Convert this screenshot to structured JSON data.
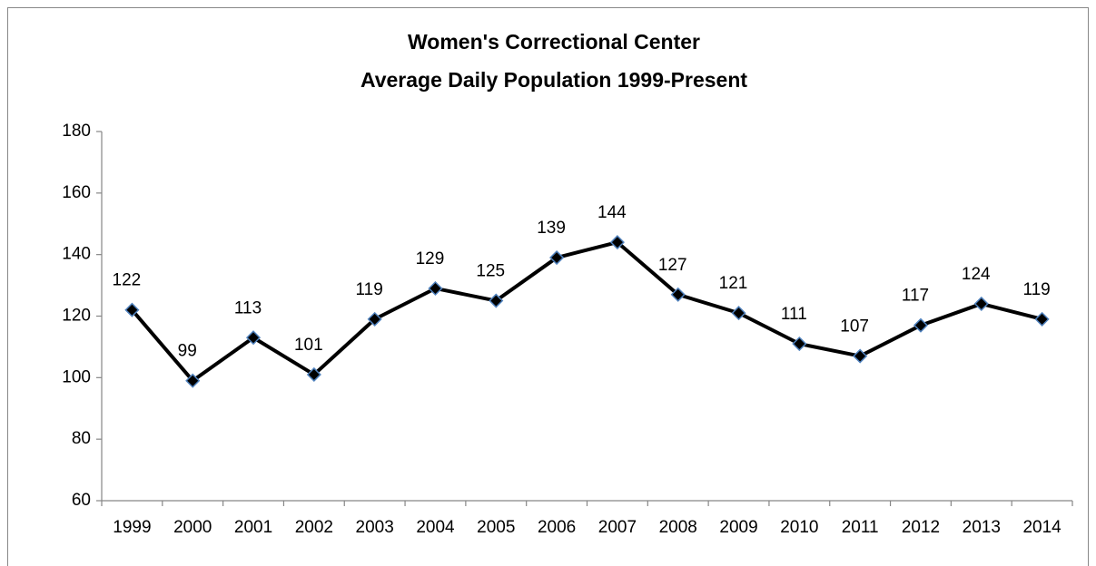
{
  "chart_data": {
    "type": "line",
    "title": "Women's Correctional Center",
    "subtitle": "Average Daily Population 1999-Present",
    "categories": [
      "1999",
      "2000",
      "2001",
      "2002",
      "2003",
      "2004",
      "2005",
      "2006",
      "2007",
      "2008",
      "2009",
      "2010",
      "2011",
      "2012",
      "2013",
      "2014"
    ],
    "series": [
      {
        "name": "Average Daily Population",
        "color": "#000000",
        "marker_edge": "#4f81bd",
        "values": [
          122,
          99,
          113,
          101,
          119,
          129,
          125,
          139,
          144,
          127,
          121,
          111,
          107,
          117,
          124,
          119
        ]
      }
    ],
    "ylim": [
      60,
      180
    ],
    "yticks": [
      60,
      80,
      100,
      120,
      140,
      160,
      180
    ],
    "grid": false
  }
}
